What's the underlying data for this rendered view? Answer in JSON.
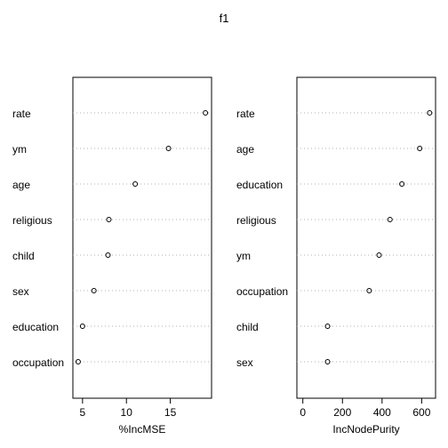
{
  "title": "f1",
  "chart_data": [
    {
      "type": "scatter",
      "style": "dotchart",
      "xlabel": "%IncMSE",
      "xlim": [
        3.9,
        19.7
      ],
      "xticks": [
        5,
        10,
        15
      ],
      "grid": "dotted horizontal",
      "rows": [
        {
          "label": "rate",
          "value": 19.0
        },
        {
          "label": "ym",
          "value": 14.8
        },
        {
          "label": "age",
          "value": 11.0
        },
        {
          "label": "religious",
          "value": 8.0
        },
        {
          "label": "child",
          "value": 7.9
        },
        {
          "label": "sex",
          "value": 6.3
        },
        {
          "label": "education",
          "value": 5.0
        },
        {
          "label": "occupation",
          "value": 4.5
        }
      ]
    },
    {
      "type": "scatter",
      "style": "dotchart",
      "xlabel": "IncNodePurity",
      "xlim": [
        -30,
        670
      ],
      "xticks": [
        0,
        200,
        400,
        600
      ],
      "grid": "dotted horizontal",
      "rows": [
        {
          "label": "rate",
          "value": 640
        },
        {
          "label": "age",
          "value": 590
        },
        {
          "label": "education",
          "value": 500
        },
        {
          "label": "religious",
          "value": 440
        },
        {
          "label": "ym",
          "value": 385
        },
        {
          "label": "occupation",
          "value": 335
        },
        {
          "label": "child",
          "value": 125
        },
        {
          "label": "sex",
          "value": 125
        }
      ]
    }
  ]
}
